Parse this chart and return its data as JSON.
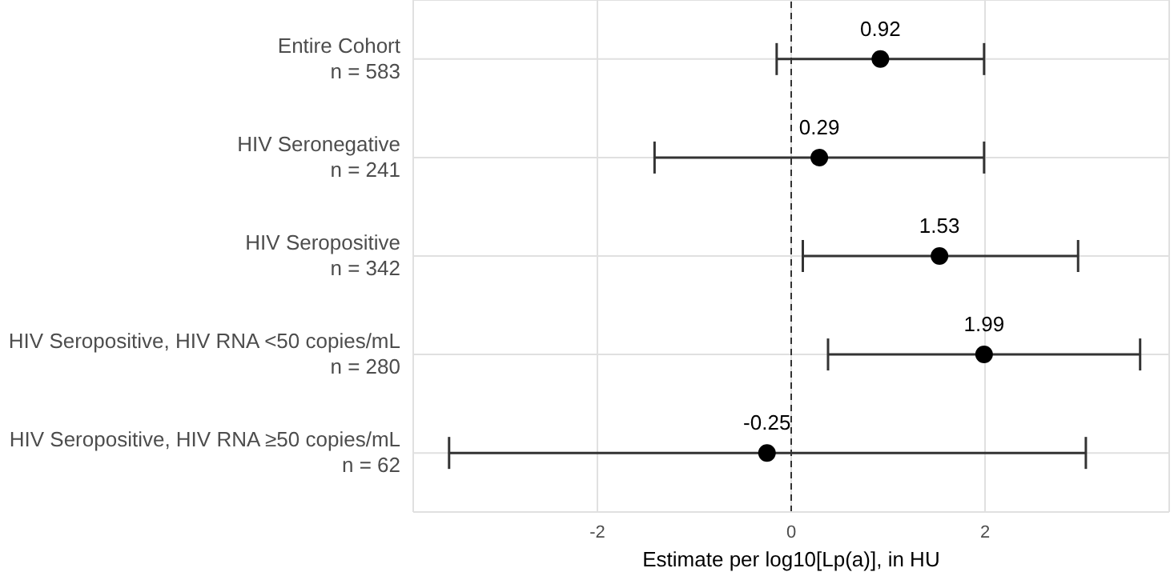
{
  "chart_data": {
    "type": "scatter",
    "orientation": "horizontal",
    "xlabel": "Estimate per log10[Lp(a)], in HU",
    "categories": [
      "Entire Cohort\nn = 583",
      "HIV Seronegative\nn = 241",
      "HIV Seropositive\nn = 342",
      "HIV Seropositive, HIV RNA <50 copies/mL\nn = 280",
      "HIV Seropositive, HIV RNA ≥50 copies/mL\nn = 62"
    ],
    "values": [
      0.92,
      0.29,
      1.53,
      1.99,
      -0.25
    ],
    "errors": [
      [
        -0.15,
        1.99
      ],
      [
        -1.41,
        1.99
      ],
      [
        0.12,
        2.96
      ],
      [
        0.38,
        3.6
      ],
      [
        -3.53,
        3.04
      ]
    ],
    "color": "#000000",
    "marker": "circle",
    "data_labels": true,
    "xlim": [
      -3.9,
      3.9
    ],
    "xticks": [
      -2,
      0,
      2
    ],
    "grid": true,
    "legend": false,
    "ref_lines": [
      {
        "axis": "x",
        "value": 0,
        "line_style": "dashed",
        "color": "#333333"
      }
    ]
  }
}
